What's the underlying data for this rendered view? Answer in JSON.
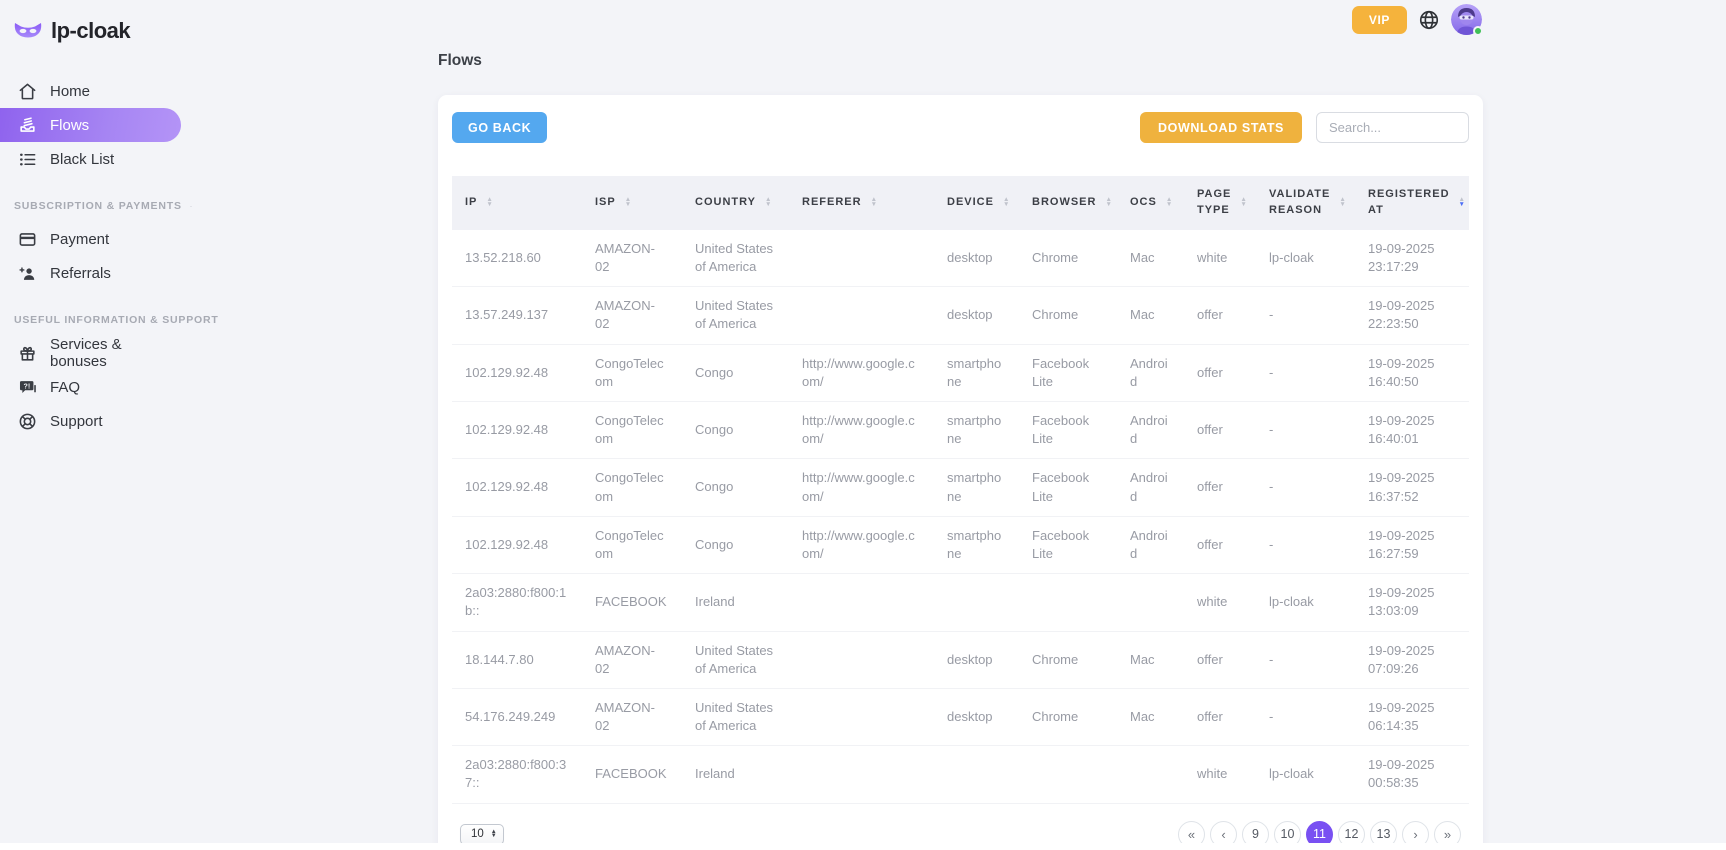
{
  "brand": {
    "name": "lp-cloak"
  },
  "topbar": {
    "vip_label": "VIP"
  },
  "sidebar": {
    "main_items": [
      {
        "label": "Home",
        "active": false
      },
      {
        "label": "Flows",
        "active": true
      },
      {
        "label": "Black List",
        "active": false
      }
    ],
    "sections": [
      {
        "label": "SUBSCRIPTION & PAYMENTS",
        "items": [
          {
            "label": "Payment"
          },
          {
            "label": "Referrals"
          }
        ]
      },
      {
        "label": "USEFUL INFORMATION & SUPPORT",
        "items": [
          {
            "label": "Services & bonuses"
          },
          {
            "label": "FAQ"
          },
          {
            "label": "Support"
          }
        ]
      }
    ]
  },
  "page": {
    "title": "Flows"
  },
  "toolbar": {
    "go_back_label": "GO BACK",
    "download_stats_label": "DOWNLOAD STATS",
    "search_placeholder": "Search..."
  },
  "table": {
    "columns": [
      {
        "label": "IP",
        "sorted": false
      },
      {
        "label": "ISP",
        "sorted": false
      },
      {
        "label": "COUNTRY",
        "sorted": false
      },
      {
        "label": "REFERER",
        "sorted": false
      },
      {
        "label": "DEVICE",
        "sorted": false
      },
      {
        "label": "BROWSER",
        "sorted": false
      },
      {
        "label": "OCS",
        "sorted": false
      },
      {
        "label": "PAGE TYPE",
        "sorted": false
      },
      {
        "label": "VALIDATE REASON",
        "sorted": false
      },
      {
        "label": "REGISTERED AT",
        "sorted": true,
        "sort_direction": "desc"
      }
    ],
    "rows": [
      [
        "13.52.218.60",
        "AMAZON-02",
        "United States of America",
        "",
        "desktop",
        "Chrome",
        "Mac",
        "white",
        "lp-cloak",
        "19-09-2025 23:17:29"
      ],
      [
        "13.57.249.137",
        "AMAZON-02",
        "United States of America",
        "",
        "desktop",
        "Chrome",
        "Mac",
        "offer",
        "-",
        "19-09-2025 22:23:50"
      ],
      [
        "102.129.92.48",
        "CongoTelecom",
        "Congo",
        "http://www.google.com/",
        "smartphone",
        "Facebook Lite",
        "Android",
        "offer",
        "-",
        "19-09-2025 16:40:50"
      ],
      [
        "102.129.92.48",
        "CongoTelecom",
        "Congo",
        "http://www.google.com/",
        "smartphone",
        "Facebook Lite",
        "Android",
        "offer",
        "-",
        "19-09-2025 16:40:01"
      ],
      [
        "102.129.92.48",
        "CongoTelecom",
        "Congo",
        "http://www.google.com/",
        "smartphone",
        "Facebook Lite",
        "Android",
        "offer",
        "-",
        "19-09-2025 16:37:52"
      ],
      [
        "102.129.92.48",
        "CongoTelecom",
        "Congo",
        "http://www.google.com/",
        "smartphone",
        "Facebook Lite",
        "Android",
        "offer",
        "-",
        "19-09-2025 16:27:59"
      ],
      [
        "2a03:2880:f800:1b::",
        "FACEBOOK",
        "Ireland",
        "",
        "",
        "",
        "",
        "white",
        "lp-cloak",
        "19-09-2025 13:03:09"
      ],
      [
        "18.144.7.80",
        "AMAZON-02",
        "United States of America",
        "",
        "desktop",
        "Chrome",
        "Mac",
        "offer",
        "-",
        "19-09-2025 07:09:26"
      ],
      [
        "54.176.249.249",
        "AMAZON-02",
        "United States of America",
        "",
        "desktop",
        "Chrome",
        "Mac",
        "offer",
        "-",
        "19-09-2025 06:14:35"
      ],
      [
        "2a03:2880:f800:37::",
        "FACEBOOK",
        "Ireland",
        "",
        "",
        "",
        "",
        "white",
        "lp-cloak",
        "19-09-2025 00:58:35"
      ]
    ]
  },
  "pagination": {
    "page_size": "10",
    "buttons": [
      "«",
      "‹",
      "9",
      "10",
      "11",
      "12",
      "13",
      "›",
      "»"
    ],
    "active": "11"
  },
  "colors": {
    "accent_purple": "#7950f2",
    "sidebar_gradient_start": "#8f63ee",
    "sidebar_gradient_end": "#b494f7",
    "vip_orange": "#f5b33c",
    "download_orange": "#efb23e",
    "go_back_blue": "#54a8ef",
    "status_green": "#40c057",
    "sort_active_blue": "#4c6ef5"
  }
}
